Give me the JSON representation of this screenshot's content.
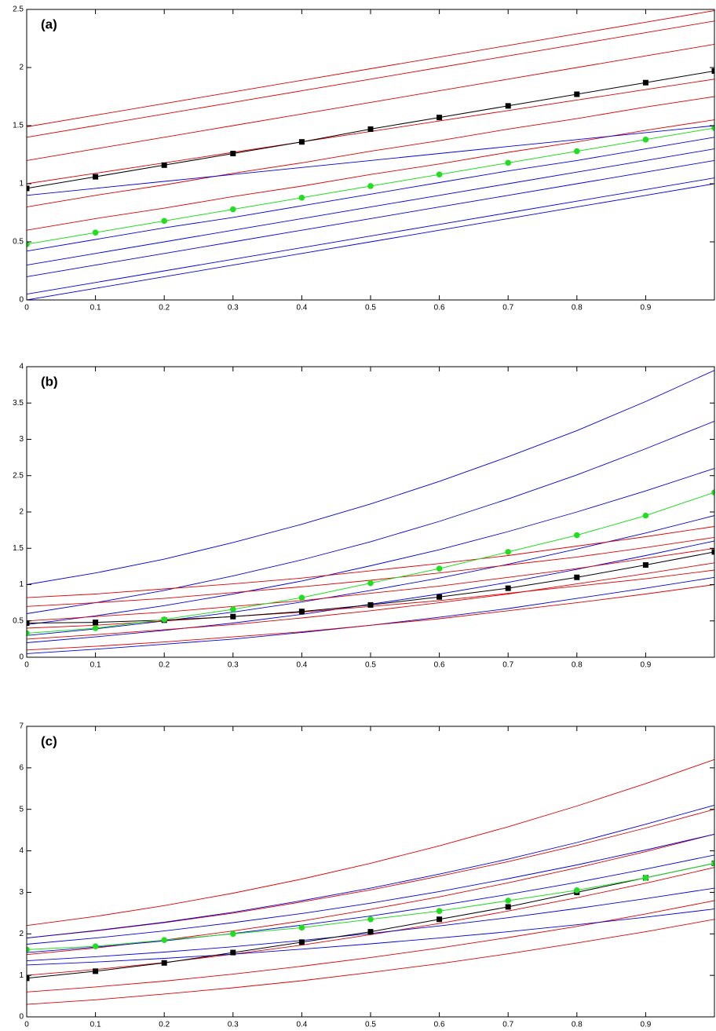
{
  "chart_data": [
    {
      "type": "line",
      "title": "(a)",
      "xlim": [
        0,
        1
      ],
      "ylim": [
        0,
        2.5
      ],
      "xticks": [
        0,
        0.1,
        0.2,
        0.3,
        0.4,
        0.5,
        0.6,
        0.7,
        0.8,
        0.9
      ],
      "yticks": [
        0,
        0.5,
        1,
        1.5,
        2,
        2.5
      ],
      "x": [
        0,
        0.1,
        0.2,
        0.3,
        0.4,
        0.5,
        0.6,
        0.7,
        0.8,
        0.9,
        1
      ],
      "series": [
        {
          "color": "#e00000",
          "values": [
            1.49,
            1.59,
            1.69,
            1.79,
            1.89,
            1.99,
            2.09,
            2.19,
            2.29,
            2.39,
            2.49
          ]
        },
        {
          "color": "#e00000",
          "values": [
            1.4,
            1.5,
            1.6,
            1.7,
            1.8,
            1.9,
            2.0,
            2.1,
            2.2,
            2.3,
            2.4
          ]
        },
        {
          "color": "#e00000",
          "values": [
            1.2,
            1.3,
            1.4,
            1.5,
            1.6,
            1.7,
            1.8,
            1.9,
            2.0,
            2.1,
            2.2
          ]
        },
        {
          "color": "#e00000",
          "values": [
            1.0,
            1.09,
            1.18,
            1.27,
            1.36,
            1.45,
            1.54,
            1.63,
            1.72,
            1.81,
            1.9
          ]
        },
        {
          "color": "#e00000",
          "values": [
            0.8,
            0.9,
            0.99,
            1.09,
            1.18,
            1.28,
            1.37,
            1.47,
            1.56,
            1.66,
            1.75
          ]
        },
        {
          "color": "#e00000",
          "values": [
            0.6,
            0.7,
            0.79,
            0.89,
            0.98,
            1.08,
            1.17,
            1.27,
            1.36,
            1.46,
            1.55
          ]
        },
        {
          "color": "#0000e0",
          "values": [
            0.9,
            0.96,
            1.02,
            1.08,
            1.14,
            1.2,
            1.26,
            1.32,
            1.38,
            1.44,
            1.5
          ]
        },
        {
          "color": "#0000e0",
          "values": [
            0.42,
            0.52,
            0.62,
            0.71,
            0.81,
            0.91,
            1.01,
            1.11,
            1.2,
            1.3,
            1.4
          ]
        },
        {
          "color": "#0000e0",
          "values": [
            0.3,
            0.4,
            0.5,
            0.6,
            0.7,
            0.8,
            0.9,
            1.0,
            1.1,
            1.2,
            1.3
          ]
        },
        {
          "color": "#0000e0",
          "values": [
            0.2,
            0.3,
            0.4,
            0.5,
            0.6,
            0.7,
            0.8,
            0.9,
            1.0,
            1.1,
            1.2
          ]
        },
        {
          "color": "#0000e0",
          "values": [
            0.05,
            0.15,
            0.25,
            0.35,
            0.45,
            0.55,
            0.65,
            0.75,
            0.85,
            0.95,
            1.05
          ]
        },
        {
          "color": "#0000e0",
          "values": [
            0.0,
            0.1,
            0.2,
            0.3,
            0.4,
            0.5,
            0.6,
            0.7,
            0.8,
            0.9,
            1.0
          ]
        },
        {
          "color": "#000000",
          "marker": "square",
          "values": [
            0.96,
            1.06,
            1.16,
            1.26,
            1.36,
            1.47,
            1.57,
            1.67,
            1.77,
            1.87,
            1.97
          ]
        },
        {
          "color": "#22dd22",
          "marker": "circle",
          "values": [
            0.48,
            0.58,
            0.68,
            0.78,
            0.88,
            0.98,
            1.08,
            1.18,
            1.28,
            1.38,
            1.48
          ]
        }
      ]
    },
    {
      "type": "line",
      "title": "(b)",
      "xlim": [
        0,
        1
      ],
      "ylim": [
        0,
        4
      ],
      "xticks": [
        0,
        0.1,
        0.2,
        0.3,
        0.4,
        0.5,
        0.6,
        0.7,
        0.8,
        0.9
      ],
      "yticks": [
        0,
        0.5,
        1,
        1.5,
        2,
        2.5,
        3,
        3.5,
        4
      ],
      "x": [
        0,
        0.1,
        0.2,
        0.3,
        0.4,
        0.5,
        0.6,
        0.7,
        0.8,
        0.9,
        1
      ],
      "series": [
        {
          "color": "#0000e0",
          "values": [
            1.0,
            1.16,
            1.35,
            1.58,
            1.83,
            2.11,
            2.42,
            2.76,
            3.12,
            3.52,
            3.95
          ]
        },
        {
          "color": "#0000e0",
          "values": [
            0.6,
            0.75,
            0.92,
            1.12,
            1.34,
            1.59,
            1.87,
            2.18,
            2.51,
            2.87,
            3.25
          ]
        },
        {
          "color": "#0000e0",
          "values": [
            0.45,
            0.57,
            0.71,
            0.87,
            1.05,
            1.26,
            1.48,
            1.73,
            2.0,
            2.29,
            2.6
          ]
        },
        {
          "color": "#0000e0",
          "values": [
            0.3,
            0.39,
            0.5,
            0.62,
            0.76,
            0.92,
            1.09,
            1.28,
            1.49,
            1.71,
            1.95
          ]
        },
        {
          "color": "#0000e0",
          "values": [
            0.2,
            0.28,
            0.37,
            0.47,
            0.59,
            0.73,
            0.87,
            1.03,
            1.21,
            1.4,
            1.6
          ]
        },
        {
          "color": "#0000e0",
          "values": [
            0.05,
            0.11,
            0.18,
            0.25,
            0.34,
            0.44,
            0.55,
            0.67,
            0.81,
            0.95,
            1.1
          ]
        },
        {
          "color": "#e00000",
          "values": [
            0.82,
            0.87,
            0.94,
            1.01,
            1.09,
            1.19,
            1.29,
            1.4,
            1.53,
            1.66,
            1.8
          ]
        },
        {
          "color": "#e00000",
          "values": [
            0.7,
            0.75,
            0.81,
            0.89,
            0.97,
            1.06,
            1.16,
            1.27,
            1.38,
            1.51,
            1.65
          ]
        },
        {
          "color": "#e00000",
          "values": [
            0.5,
            0.56,
            0.62,
            0.7,
            0.78,
            0.88,
            0.98,
            1.1,
            1.22,
            1.36,
            1.5
          ]
        },
        {
          "color": "#e00000",
          "values": [
            0.4,
            0.44,
            0.5,
            0.56,
            0.62,
            0.7,
            0.78,
            0.88,
            0.98,
            1.08,
            1.2
          ]
        },
        {
          "color": "#e00000",
          "values": [
            0.25,
            0.31,
            0.38,
            0.45,
            0.54,
            0.64,
            0.75,
            0.87,
            1.01,
            1.15,
            1.3
          ]
        },
        {
          "color": "#e00000",
          "values": [
            0.1,
            0.15,
            0.21,
            0.28,
            0.35,
            0.44,
            0.53,
            0.64,
            0.75,
            0.87,
            1.0
          ]
        },
        {
          "color": "#000000",
          "marker": "square",
          "values": [
            0.47,
            0.48,
            0.51,
            0.56,
            0.63,
            0.72,
            0.83,
            0.95,
            1.1,
            1.27,
            1.45
          ]
        },
        {
          "color": "#22dd22",
          "marker": "circle",
          "values": [
            0.33,
            0.4,
            0.52,
            0.66,
            0.82,
            1.02,
            1.22,
            1.45,
            1.68,
            1.95,
            2.27
          ]
        }
      ]
    },
    {
      "type": "line",
      "title": "(c)",
      "xlim": [
        0,
        1
      ],
      "ylim": [
        0,
        7
      ],
      "xticks": [
        0,
        0.1,
        0.2,
        0.3,
        0.4,
        0.5,
        0.6,
        0.7,
        0.8,
        0.9
      ],
      "yticks": [
        0,
        1,
        2,
        3,
        4,
        5,
        6,
        7
      ],
      "x": [
        0,
        0.1,
        0.2,
        0.3,
        0.4,
        0.5,
        0.6,
        0.7,
        0.8,
        0.9,
        1
      ],
      "series": [
        {
          "color": "#e00000",
          "values": [
            2.2,
            2.42,
            2.68,
            2.98,
            3.32,
            3.7,
            4.12,
            4.58,
            5.08,
            5.62,
            6.2
          ]
        },
        {
          "color": "#e00000",
          "values": [
            1.9,
            2.07,
            2.27,
            2.5,
            2.77,
            3.06,
            3.39,
            3.74,
            4.13,
            4.55,
            5.0
          ]
        },
        {
          "color": "#e00000",
          "values": [
            1.5,
            1.66,
            1.85,
            2.07,
            2.31,
            2.59,
            2.89,
            3.23,
            3.59,
            3.98,
            4.4
          ]
        },
        {
          "color": "#e00000",
          "values": [
            1.0,
            1.14,
            1.31,
            1.51,
            1.73,
            1.98,
            2.25,
            2.55,
            2.87,
            3.22,
            3.6
          ]
        },
        {
          "color": "#e00000",
          "values": [
            0.6,
            0.72,
            0.86,
            1.03,
            1.22,
            1.43,
            1.66,
            1.91,
            2.18,
            2.48,
            2.8
          ]
        },
        {
          "color": "#e00000",
          "values": [
            0.3,
            0.41,
            0.55,
            0.7,
            0.87,
            1.07,
            1.28,
            1.52,
            1.78,
            2.05,
            2.35
          ]
        },
        {
          "color": "#0000e0",
          "values": [
            1.9,
            2.08,
            2.28,
            2.52,
            2.8,
            3.1,
            3.44,
            3.8,
            4.2,
            4.64,
            5.1
          ]
        },
        {
          "color": "#0000e0",
          "values": [
            1.75,
            1.9,
            2.07,
            2.27,
            2.49,
            2.74,
            3.02,
            3.33,
            3.66,
            4.02,
            4.4
          ]
        },
        {
          "color": "#0000e0",
          "values": [
            1.55,
            1.68,
            1.83,
            2.01,
            2.21,
            2.43,
            2.68,
            2.95,
            3.24,
            3.56,
            3.9
          ]
        },
        {
          "color": "#0000e0",
          "values": [
            1.35,
            1.45,
            1.56,
            1.69,
            1.84,
            2.01,
            2.19,
            2.39,
            2.61,
            2.85,
            3.1
          ]
        },
        {
          "color": "#0000e0",
          "values": [
            1.25,
            1.32,
            1.41,
            1.51,
            1.63,
            1.76,
            1.9,
            2.05,
            2.22,
            2.4,
            2.6
          ]
        },
        {
          "color": "#000000",
          "marker": "square",
          "values": [
            0.93,
            1.1,
            1.3,
            1.55,
            1.8,
            2.05,
            2.35,
            2.65,
            3.0,
            3.35,
            3.7
          ]
        },
        {
          "color": "#22dd22",
          "marker": "circle",
          "values": [
            1.62,
            1.7,
            1.85,
            2.0,
            2.15,
            2.35,
            2.55,
            2.8,
            3.05,
            3.35,
            3.7
          ]
        }
      ]
    }
  ]
}
